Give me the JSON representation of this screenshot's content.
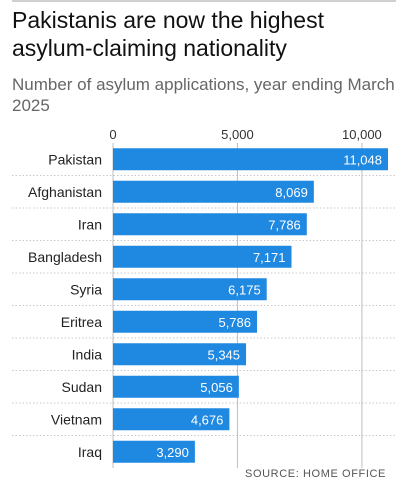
{
  "title": "Pakistanis are now the highest asylum-claiming nationality",
  "subtitle": "Number of asylum applications, year ending March 2025",
  "source": "SOURCE: HOME OFFICE",
  "colors": {
    "bar": "#1f88e0",
    "value_label": "#ffffff",
    "gridline": "#bfbfbf",
    "separator": "#c8c8c8",
    "text": "#222222"
  },
  "chart_data": {
    "type": "bar",
    "orientation": "horizontal",
    "categories": [
      "Pakistan",
      "Afghanistan",
      "Iran",
      "Bangladesh",
      "Syria",
      "Eritrea",
      "India",
      "Sudan",
      "Vietnam",
      "Iraq"
    ],
    "values": [
      11048,
      8069,
      7786,
      7171,
      6175,
      5786,
      5345,
      5056,
      4676,
      3290
    ],
    "value_labels": [
      "11,048",
      "8,069",
      "7,786",
      "7,171",
      "6,175",
      "5,786",
      "5,345",
      "5,056",
      "4,676",
      "3,290"
    ],
    "x_ticks": [
      0,
      5000,
      10000
    ],
    "x_tick_labels": [
      "0",
      "5,000",
      "10,000"
    ],
    "xlim": [
      0,
      11048
    ],
    "grid": true
  }
}
